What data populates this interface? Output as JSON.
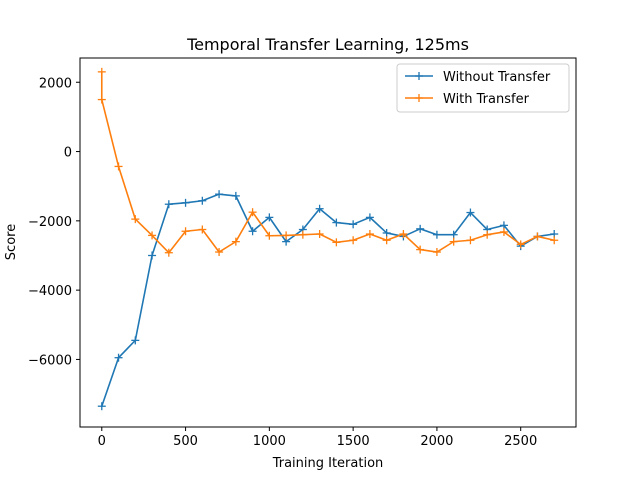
{
  "chart_data": {
    "type": "line",
    "title": "Temporal Transfer Learning, 125ms",
    "xlabel": "Training Iteration",
    "ylabel": "Score",
    "xlim": [
      -130,
      2830
    ],
    "ylim": [
      -7950,
      2700
    ],
    "xticks": [
      0,
      500,
      1000,
      1500,
      2000,
      2500
    ],
    "yticks": [
      -6000,
      -4000,
      -2000,
      0,
      2000
    ],
    "grid": false,
    "legend_position": "top-right",
    "marker": "+",
    "series": [
      {
        "name": "Without Transfer",
        "color": "#1f77b4",
        "x": [
          0,
          100,
          200,
          300,
          400,
          500,
          600,
          700,
          800,
          900,
          1000,
          1100,
          1200,
          1300,
          1400,
          1500,
          1600,
          1700,
          1800,
          1900,
          2000,
          2100,
          2200,
          2300,
          2400,
          2500,
          2600,
          2700
        ],
        "y": [
          -7350,
          -5950,
          -5450,
          -3000,
          -1520,
          -1480,
          -1420,
          -1230,
          -1280,
          -2300,
          -1900,
          -2600,
          -2250,
          -1650,
          -2050,
          -2100,
          -1900,
          -2350,
          -2450,
          -2230,
          -2400,
          -2400,
          -1760,
          -2250,
          -2130,
          -2730,
          -2450,
          -2380
        ]
      },
      {
        "name": "With Transfer",
        "color": "#ff7f0e",
        "x": [
          0,
          0,
          100,
          200,
          300,
          400,
          500,
          600,
          700,
          800,
          900,
          1000,
          1100,
          1200,
          1300,
          1400,
          1500,
          1600,
          1700,
          1800,
          1900,
          2000,
          2100,
          2200,
          2300,
          2400,
          2500,
          2600,
          2700
        ],
        "y": [
          2300,
          1500,
          -430,
          -1950,
          -2420,
          -2920,
          -2300,
          -2250,
          -2900,
          -2600,
          -1750,
          -2430,
          -2420,
          -2400,
          -2380,
          -2620,
          -2560,
          -2380,
          -2560,
          -2380,
          -2830,
          -2900,
          -2600,
          -2560,
          -2400,
          -2320,
          -2680,
          -2450,
          -2560
        ]
      }
    ]
  }
}
